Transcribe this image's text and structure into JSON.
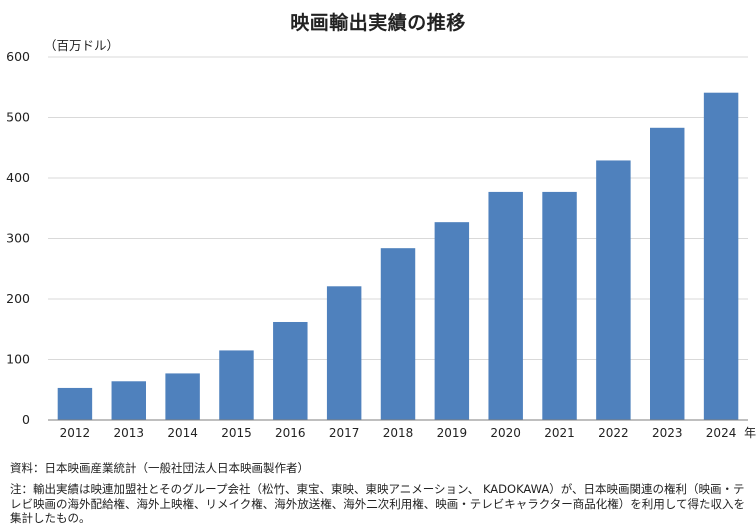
{
  "title": "映画輸出実績の推移",
  "unit_label": "（百万ドル）",
  "source": "資料：日本映画産業統計（一般社団法人日本映画製作者）",
  "note": "注：輸出実績は映連加盟社とそのグループ会社（松竹、東宝、東映、東映アニメーション、 KADOKAWA）が、日本映画関連の権利（映画・テレビ映画の海外配給権、海外上映権、リメイク権、海外放送権、海外二次利用権、映画・テレビキャラクター商品化権）を利用して得た収入を集計したもの。",
  "colors": {
    "bar": "#4f81bd",
    "grid": "#d9d9d9",
    "axis": "#7f7f7f",
    "text": "#222222"
  },
  "chart_data": {
    "type": "bar",
    "title": "映画輸出実績の推移",
    "ylabel": "（百万ドル）",
    "xlabel_suffix": "年",
    "categories": [
      "2012",
      "2013",
      "2014",
      "2015",
      "2016",
      "2017",
      "2018",
      "2019",
      "2020",
      "2021",
      "2022",
      "2023",
      "2024"
    ],
    "values": [
      53,
      64,
      77,
      115,
      162,
      221,
      284,
      327,
      377,
      377,
      429,
      483,
      541
    ],
    "ylim": [
      0,
      600
    ],
    "yticks": [
      0,
      100,
      200,
      300,
      400,
      500,
      600
    ],
    "grid": true,
    "legend": "none"
  }
}
